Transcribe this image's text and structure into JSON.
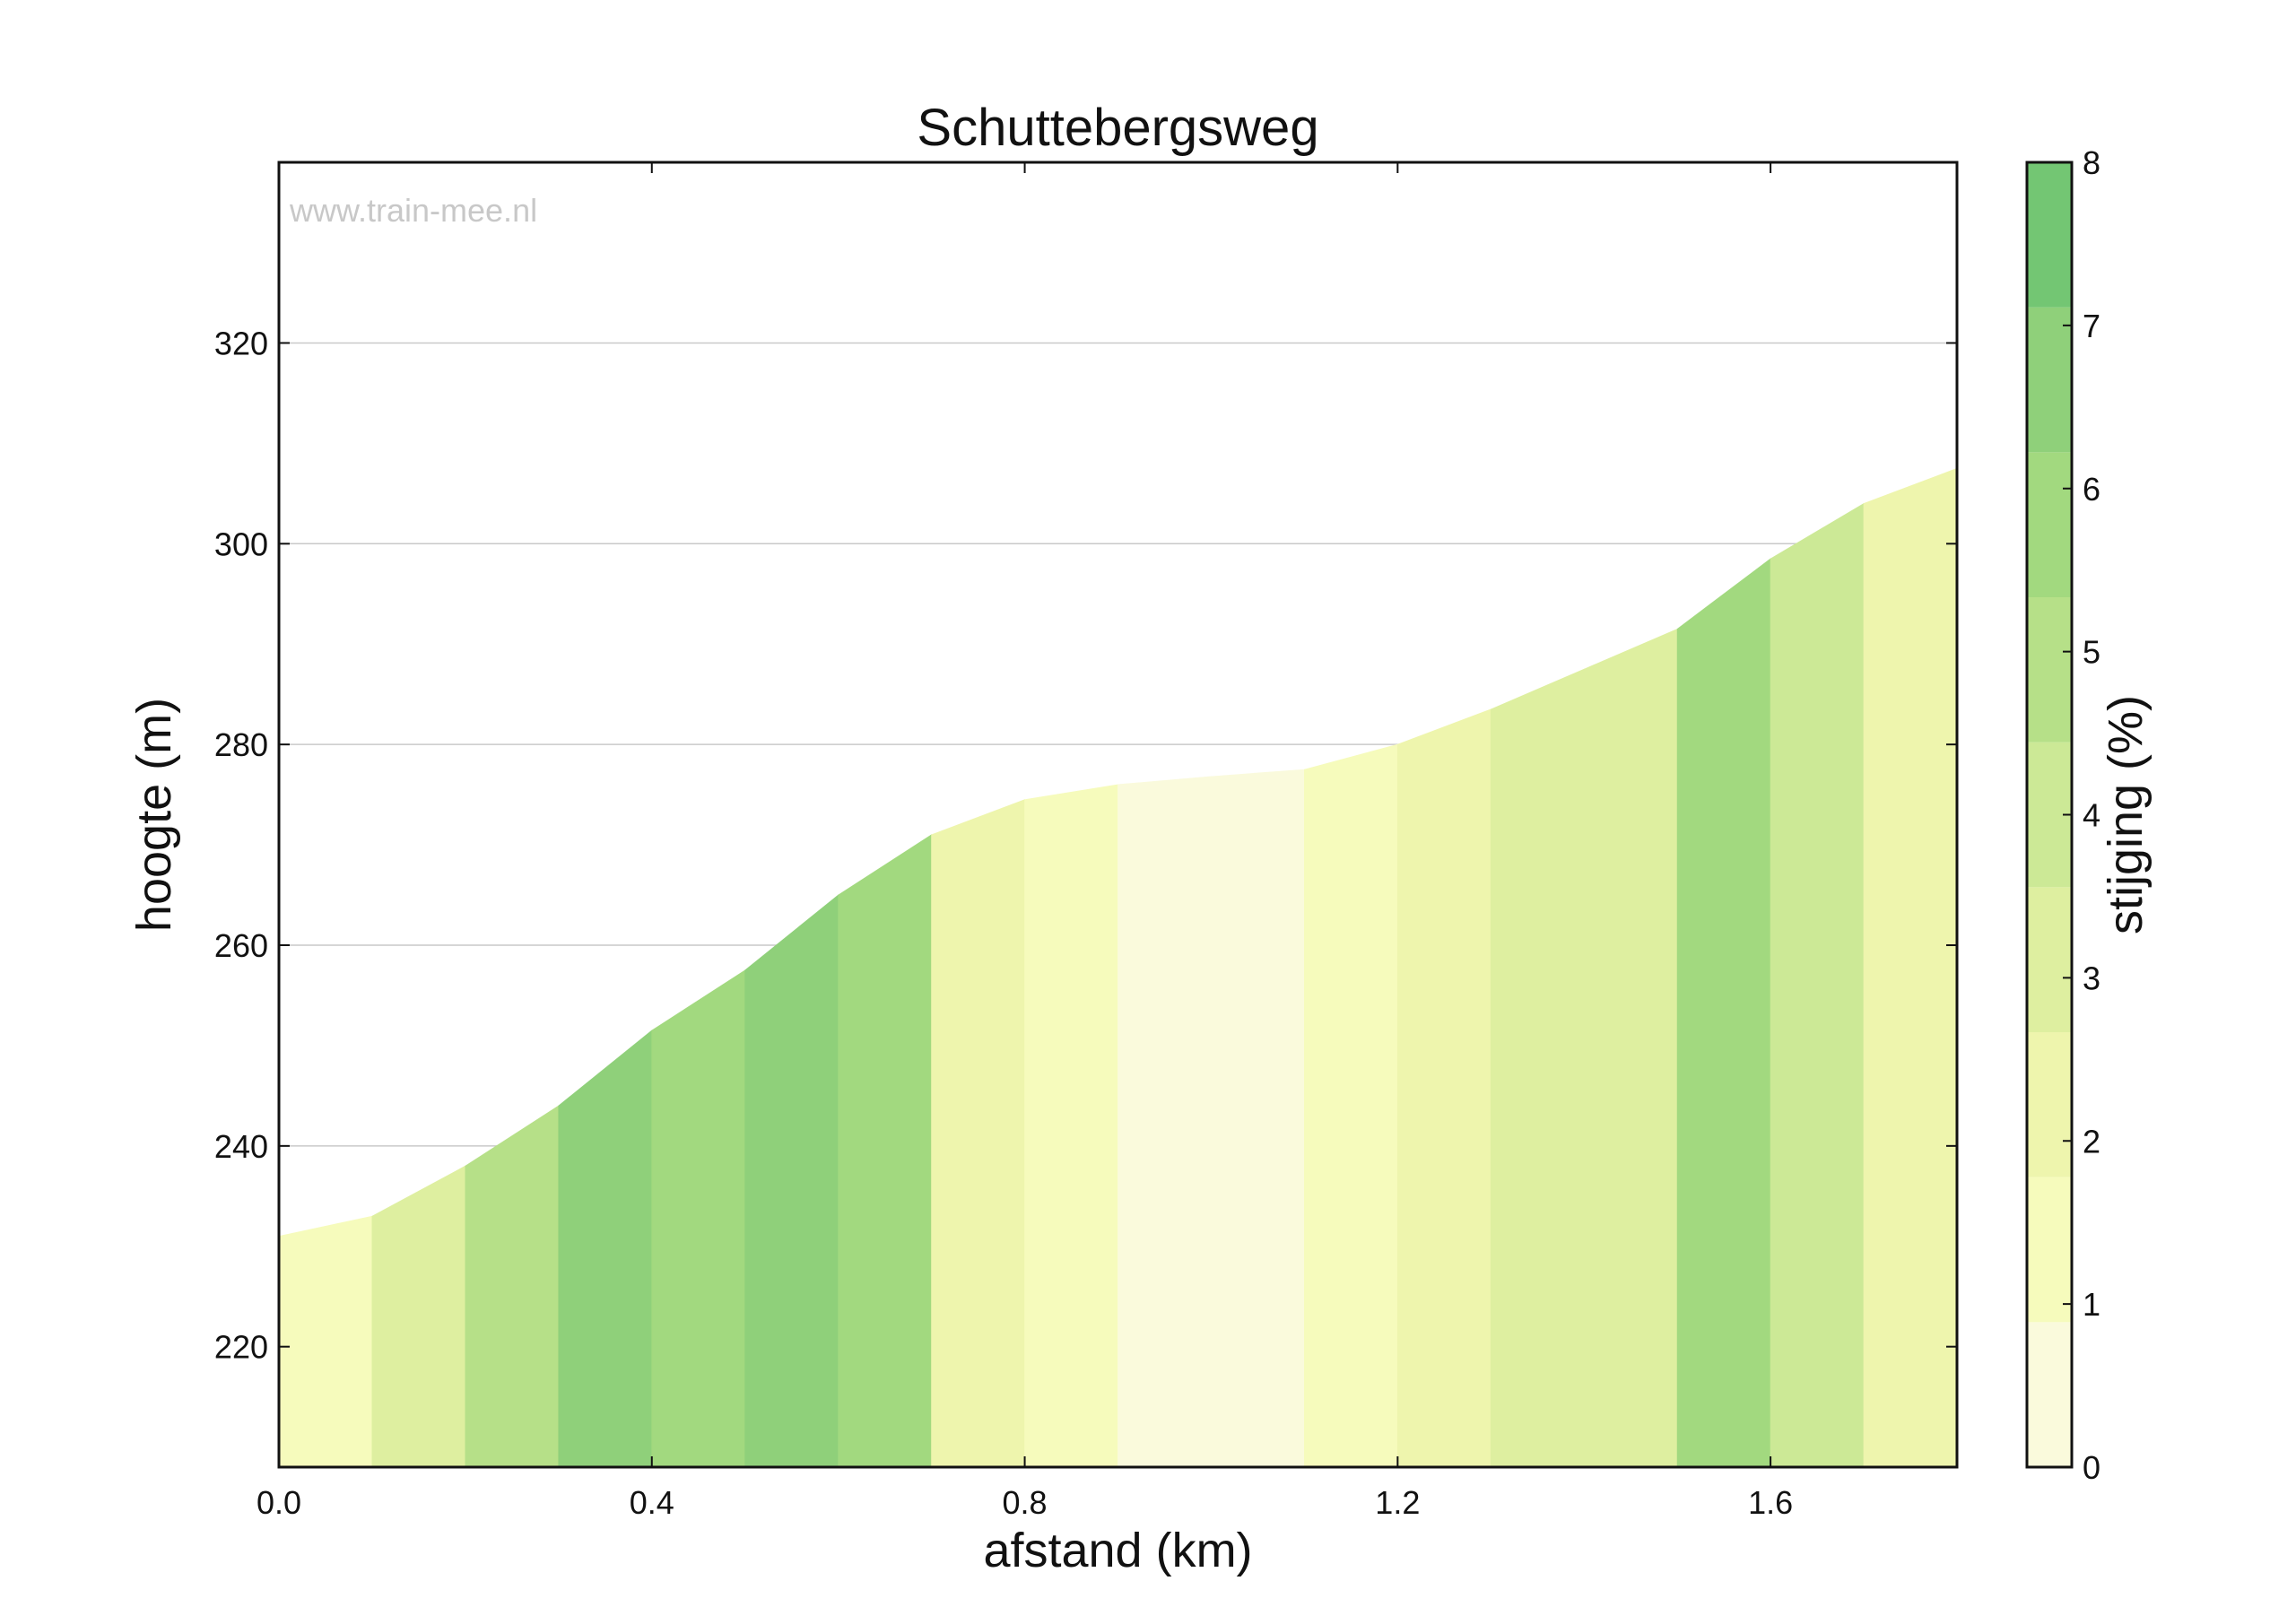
{
  "chart_data": {
    "type": "area",
    "title": "Schuttebergsweg",
    "xlabel": "afstand (km)",
    "ylabel": "hoogte (m)",
    "watermark": "www.train-mee.nl",
    "xlim": [
      0.0,
      1.8
    ],
    "ylim": [
      208,
      338
    ],
    "x_ticks": [
      "0.0",
      "0.4",
      "0.8",
      "1.2",
      "1.6"
    ],
    "y_ticks": [
      "220",
      "240",
      "260",
      "280",
      "300",
      "320"
    ],
    "grid": "horizontal",
    "x": [
      0.0,
      0.1,
      0.2,
      0.3,
      0.4,
      0.5,
      0.6,
      0.7,
      0.8,
      0.9,
      1.0,
      1.1,
      1.2,
      1.3,
      1.4,
      1.5,
      1.6,
      1.7,
      1.8
    ],
    "elevation": [
      231.0,
      233.0,
      238.0,
      244.0,
      251.5,
      257.5,
      265.0,
      271.0,
      274.5,
      276.0,
      276.8,
      277.5,
      280.0,
      283.5,
      287.5,
      291.5,
      298.5,
      304.0,
      307.5
    ],
    "segment_grade_pct": [
      1.5,
      3.5,
      5.5,
      7.5,
      6.0,
      7.5,
      6.0,
      2.5,
      1.5,
      0.5,
      0.5,
      1.8,
      2.5,
      3.5,
      3.5,
      6.5,
      4.5,
      2.5
    ],
    "colorbar": {
      "label": "stijging (%)",
      "ticks": [
        "0",
        "1",
        "2",
        "3",
        "4",
        "5",
        "6",
        "7",
        "8"
      ],
      "range": [
        0,
        8
      ],
      "colors": [
        "#fafadc",
        "#f6fbbc",
        "#eef5ad",
        "#deefa0",
        "#cce996",
        "#b6e088",
        "#a2d97f",
        "#8fd07a",
        "#73c673"
      ]
    }
  }
}
